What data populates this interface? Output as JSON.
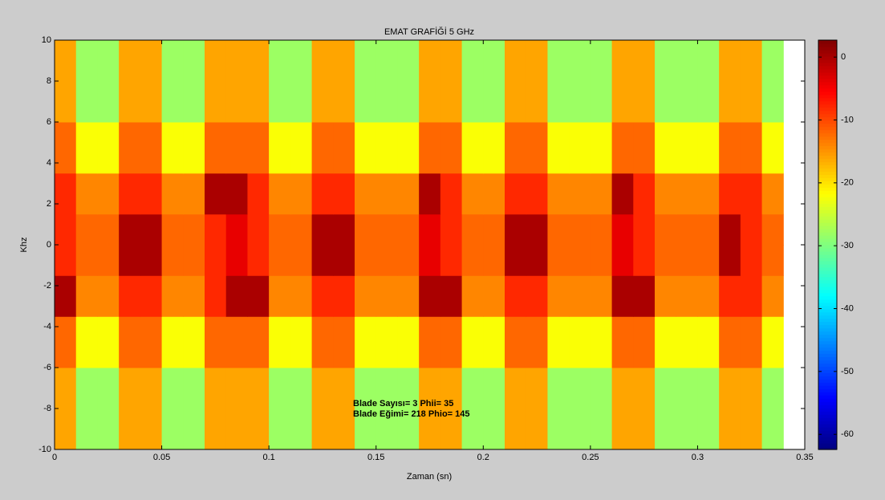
{
  "chart_data": {
    "type": "heatmap",
    "title": "EMAT GRAFİĞİ 5 GHz",
    "x_label": "Zaman (sn)",
    "y_label": "Khz",
    "annotations": [
      "Blade Sayısı= 3 Phii= 35",
      "Blade Eğimi= 218 Phio= 145"
    ],
    "colormap": "jet",
    "xlim": [
      0,
      0.35
    ],
    "xticks": [
      0,
      0.05,
      0.1,
      0.15,
      0.2,
      0.25,
      0.3,
      0.35
    ],
    "ylim": [
      -10,
      10
    ],
    "yticks": [
      -10,
      -8,
      -6,
      -4,
      -2,
      0,
      2,
      4,
      6,
      8,
      10
    ],
    "clim": [
      -62.4,
      2.7
    ],
    "cticks": [
      0,
      -10,
      -20,
      -30,
      -40,
      -50,
      -60
    ],
    "xbins": [
      0,
      0.01,
      0.02,
      0.03,
      0.04,
      0.05,
      0.06,
      0.07,
      0.08,
      0.09,
      0.1,
      0.11,
      0.12,
      0.13,
      0.14,
      0.15,
      0.16,
      0.17,
      0.18,
      0.19,
      0.2,
      0.21,
      0.22,
      0.23,
      0.24,
      0.25,
      0.26,
      0.27,
      0.28,
      0.29,
      0.3,
      0.31,
      0.32,
      0.33,
      0.34
    ],
    "ybins": [
      -10,
      -6,
      -3.5,
      -1.5,
      0,
      1.5,
      3.5,
      6,
      10
    ],
    "z": [
      [
        -16,
        -28,
        -28,
        -16,
        -16,
        -28,
        -28,
        -16,
        -16,
        -16,
        -28,
        -28,
        -16,
        -16,
        -28,
        -28,
        -28,
        -16,
        -16,
        -28,
        -28,
        -16,
        -16,
        -28,
        -28,
        -28,
        -16,
        -16,
        -28,
        -28,
        -28,
        -16,
        -16,
        -28
      ],
      [
        -12,
        -22,
        -22,
        -12,
        -12,
        -22,
        -22,
        -12,
        -12,
        -12,
        -22,
        -22,
        -12,
        -12,
        -22,
        -22,
        -22,
        -12,
        -12,
        -22,
        -22,
        -12,
        -12,
        -22,
        -22,
        -22,
        -12,
        -12,
        -22,
        -22,
        -22,
        -12,
        -12,
        -22
      ],
      [
        0,
        -14,
        -14,
        -8,
        -8,
        -14,
        -14,
        -8,
        0,
        0,
        -14,
        -14,
        -8,
        -8,
        -14,
        -14,
        -14,
        0,
        0,
        -14,
        -14,
        -8,
        -8,
        -14,
        -14,
        -14,
        0,
        0,
        -14,
        -14,
        -14,
        -8,
        -8,
        -14
      ],
      [
        -8,
        -12,
        -12,
        0,
        0,
        -12,
        -12,
        -8,
        -4,
        -8,
        -12,
        -12,
        0,
        0,
        -12,
        -12,
        -12,
        -4,
        -8,
        -12,
        -12,
        0,
        0,
        -12,
        -12,
        -12,
        -4,
        -8,
        -12,
        -12,
        -12,
        0,
        -8,
        -12
      ],
      [
        -8,
        -12,
        -12,
        0,
        0,
        -12,
        -12,
        -8,
        -4,
        -8,
        -12,
        -12,
        0,
        0,
        -12,
        -12,
        -12,
        -4,
        -8,
        -12,
        -12,
        0,
        0,
        -12,
        -12,
        -12,
        -4,
        -8,
        -12,
        -12,
        -12,
        0,
        -8,
        -12
      ],
      [
        -8,
        -14,
        -14,
        -8,
        -8,
        -14,
        -14,
        0,
        0,
        -8,
        -14,
        -14,
        -8,
        -8,
        -14,
        -14,
        -14,
        0,
        -8,
        -14,
        -14,
        -8,
        -8,
        -14,
        -14,
        -14,
        0,
        -8,
        -14,
        -14,
        -14,
        -8,
        -8,
        -14
      ],
      [
        -12,
        -22,
        -22,
        -12,
        -12,
        -22,
        -22,
        -12,
        -12,
        -12,
        -22,
        -22,
        -12,
        -12,
        -22,
        -22,
        -22,
        -12,
        -12,
        -22,
        -22,
        -12,
        -12,
        -22,
        -22,
        -22,
        -12,
        -12,
        -22,
        -22,
        -22,
        -12,
        -12,
        -22
      ],
      [
        -16,
        -28,
        -28,
        -16,
        -16,
        -28,
        -28,
        -16,
        -16,
        -16,
        -28,
        -28,
        -16,
        -16,
        -28,
        -28,
        -28,
        -16,
        -16,
        -28,
        -28,
        -16,
        -16,
        -28,
        -28,
        -28,
        -16,
        -16,
        -28,
        -28,
        -28,
        -16,
        -16,
        -28
      ]
    ]
  }
}
